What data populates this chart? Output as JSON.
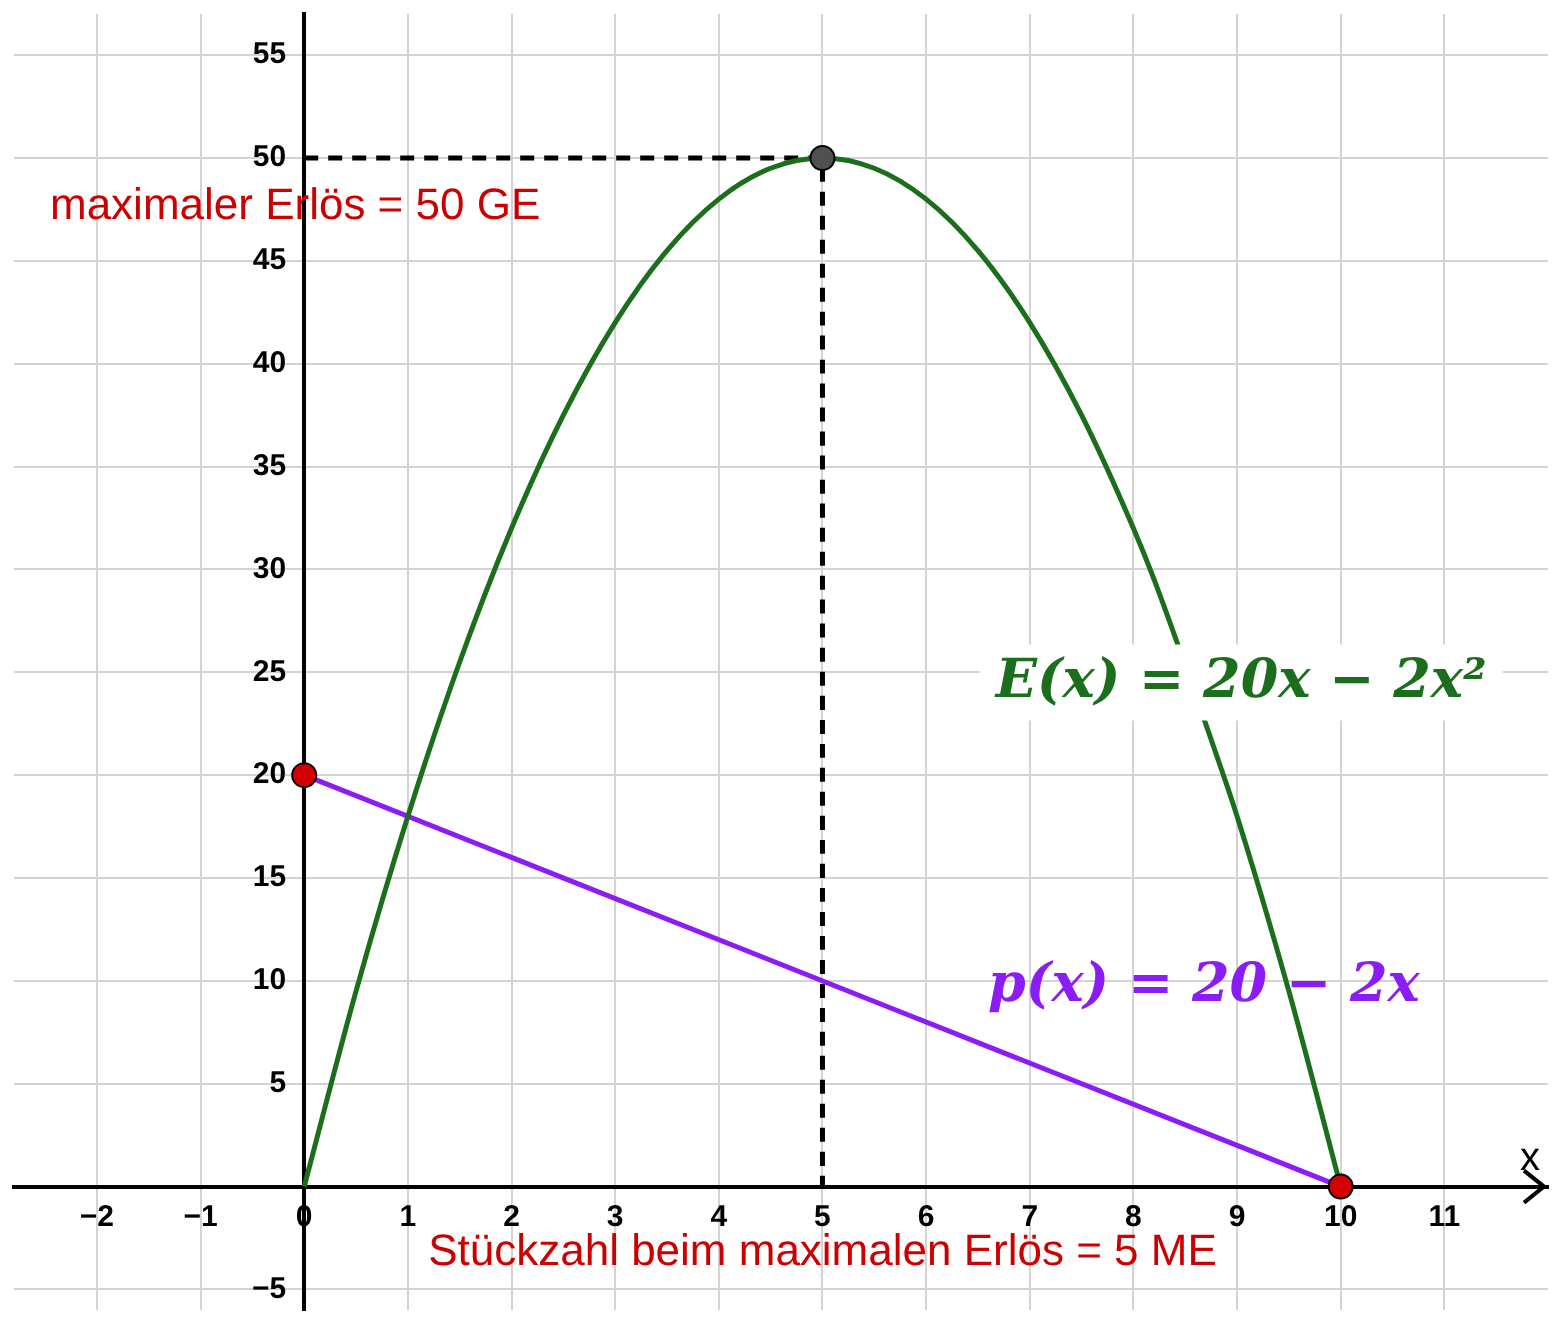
{
  "chart_data": {
    "type": "line",
    "xlabel": "x",
    "xlim": [
      -2.8,
      12
    ],
    "xticks": [
      -2,
      -1,
      0,
      1,
      2,
      3,
      4,
      5,
      6,
      7,
      8,
      9,
      10,
      11
    ],
    "ylim": [
      -6,
      57
    ],
    "yticks": [
      -5,
      5,
      10,
      15,
      20,
      25,
      30,
      35,
      40,
      45,
      50,
      55
    ],
    "grid": true,
    "legend": false,
    "marker": "none",
    "series": [
      {
        "name": "E(x) = 20x − 2x²",
        "color": "#1b6e1b",
        "x": [
          0,
          0.5,
          1,
          1.5,
          2,
          2.5,
          3,
          3.5,
          4,
          4.5,
          5,
          5.5,
          6,
          6.5,
          7,
          7.5,
          8,
          8.2,
          8.8,
          9,
          9.5,
          10
        ],
        "values": [
          0,
          9.5,
          18,
          25.5,
          32,
          37.5,
          42,
          45.5,
          48,
          49.5,
          50,
          49.5,
          48,
          45.5,
          42,
          37.5,
          32,
          29.5,
          21,
          18,
          9.5,
          0
        ]
      },
      {
        "name": "p(x) = 20 − 2x",
        "color": "#8b1cf5",
        "x": [
          0,
          10
        ],
        "values": [
          20,
          0
        ]
      },
      {
        "type": "line",
        "color": "#000000",
        "line_style": "dashed",
        "x": [
          0,
          5,
          5
        ],
        "values": [
          50,
          50,
          0
        ]
      },
      {
        "type": "scatter",
        "color": "#d40000",
        "marker": "circle",
        "x": [
          0,
          10
        ],
        "values": [
          20,
          0
        ]
      },
      {
        "type": "scatter",
        "color": "#505050",
        "marker": "circle",
        "x": [
          5
        ],
        "values": [
          50
        ]
      }
    ],
    "annotations": [
      "maximaler Erlös = 50 GE",
      "Stückzahl beim maximalen Erlös = 5 ME"
    ]
  }
}
